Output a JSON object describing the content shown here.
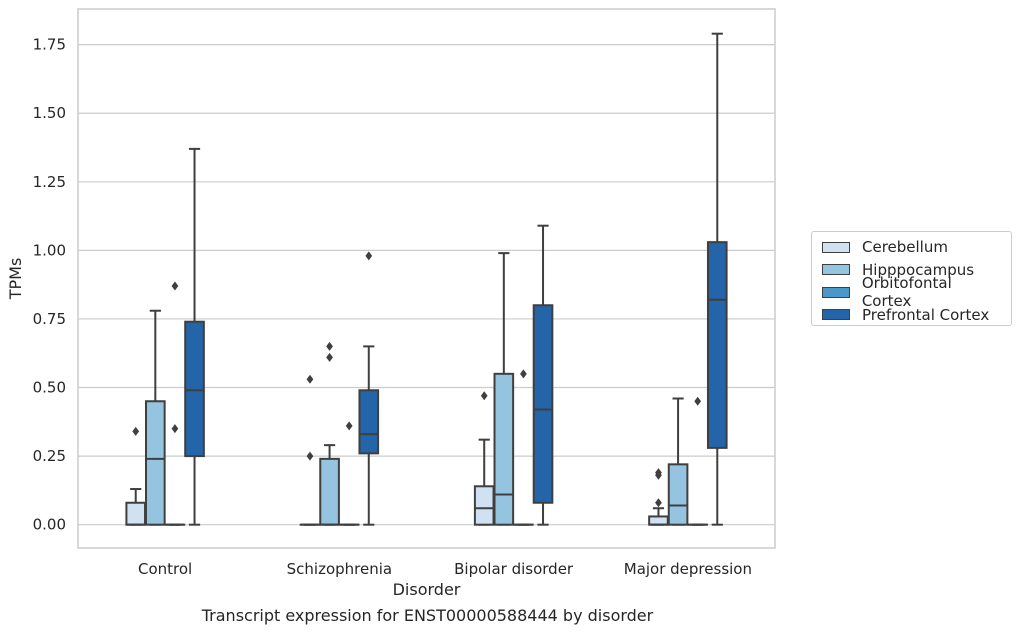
{
  "chart_data": {
    "type": "box",
    "xlabel": "Disorder",
    "ylabel": "TPMs",
    "caption": "Transcript expression for ENST00000588444 by disorder",
    "ylim": [
      -0.085,
      1.88
    ],
    "yticks": [
      "0.00",
      "0.25",
      "0.50",
      "0.75",
      "1.00",
      "1.25",
      "1.50",
      "1.75"
    ],
    "grid": true,
    "legend_position": "right",
    "categories": [
      "Control",
      "Schizophrenia",
      "Bipolar disorder",
      "Major depression"
    ],
    "series": [
      {
        "name": "Cerebellum",
        "color": "#d0e1f2",
        "boxes": [
          {
            "q1": 0,
            "median": 0,
            "q3": 0.08,
            "whisker_low": 0,
            "whisker_high": 0.13,
            "outliers": [
              0.34
            ]
          },
          {
            "q1": 0,
            "median": 0,
            "q3": 0,
            "whisker_low": 0,
            "whisker_high": 0,
            "outliers": [
              0.25,
              0.53
            ]
          },
          {
            "q1": 0,
            "median": 0.06,
            "q3": 0.14,
            "whisker_low": 0,
            "whisker_high": 0.31,
            "outliers": [
              0.47
            ]
          },
          {
            "q1": 0,
            "median": 0,
            "q3": 0.03,
            "whisker_low": 0,
            "whisker_high": 0.06,
            "outliers": [
              0.08,
              0.18,
              0.19
            ]
          }
        ]
      },
      {
        "name": "Hipppocampus",
        "color": "#94c4df",
        "boxes": [
          {
            "q1": 0,
            "median": 0.24,
            "q3": 0.45,
            "whisker_low": 0,
            "whisker_high": 0.78,
            "outliers": []
          },
          {
            "q1": 0,
            "median": 0,
            "q3": 0.24,
            "whisker_low": 0,
            "whisker_high": 0.29,
            "outliers": [
              0.61,
              0.65
            ]
          },
          {
            "q1": 0,
            "median": 0.11,
            "q3": 0.55,
            "whisker_low": 0,
            "whisker_high": 0.99,
            "outliers": []
          },
          {
            "q1": 0,
            "median": 0.07,
            "q3": 0.22,
            "whisker_low": 0,
            "whisker_high": 0.46,
            "outliers": []
          }
        ]
      },
      {
        "name": "Orbitofontal Cortex",
        "color": "#4a98c9",
        "boxes": [
          {
            "q1": 0,
            "median": 0,
            "q3": 0,
            "whisker_low": 0,
            "whisker_high": 0,
            "outliers": [
              0.35,
              0.87
            ]
          },
          {
            "q1": 0,
            "median": 0,
            "q3": 0,
            "whisker_low": 0,
            "whisker_high": 0,
            "outliers": [
              0.36
            ]
          },
          {
            "q1": 0,
            "median": 0,
            "q3": 0,
            "whisker_low": 0,
            "whisker_high": 0,
            "outliers": [
              0.55
            ]
          },
          {
            "q1": 0,
            "median": 0,
            "q3": 0,
            "whisker_low": 0,
            "whisker_high": 0,
            "outliers": [
              0.45
            ]
          }
        ]
      },
      {
        "name": "Prefrontal Cortex",
        "color": "#2464a8",
        "boxes": [
          {
            "q1": 0.25,
            "median": 0.49,
            "q3": 0.74,
            "whisker_low": 0,
            "whisker_high": 1.37,
            "outliers": []
          },
          {
            "q1": 0.26,
            "median": 0.33,
            "q3": 0.49,
            "whisker_low": 0,
            "whisker_high": 0.65,
            "outliers": [
              0.98
            ]
          },
          {
            "q1": 0.08,
            "median": 0.42,
            "q3": 0.8,
            "whisker_low": 0,
            "whisker_high": 1.09,
            "outliers": []
          },
          {
            "q1": 0.28,
            "median": 0.82,
            "q3": 1.03,
            "whisker_low": 0,
            "whisker_high": 1.79,
            "outliers": []
          }
        ]
      }
    ]
  }
}
